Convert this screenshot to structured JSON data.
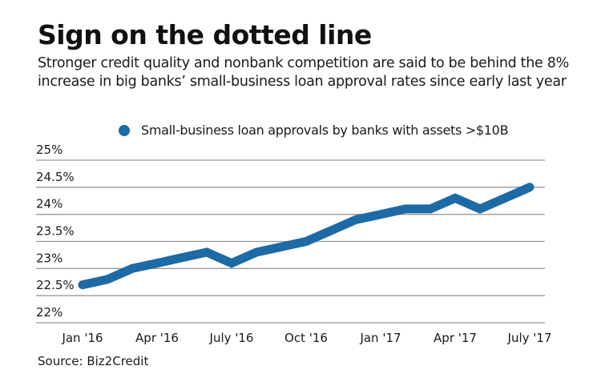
{
  "header": {
    "title": "Sign on the dotted line",
    "subtitle": "Stronger credit quality and nonbank competition are said to be behind the 8% increase in big banks’ small-business loan approval rates since early last year"
  },
  "legend": {
    "label": "Small-business loan approvals by banks with assets >$10B",
    "color": "#1d6aa5"
  },
  "source": "Source: Biz2Credit",
  "chart_data": {
    "type": "line",
    "title": "Sign on the dotted line",
    "subtitle": "Stronger credit quality and nonbank competition are said to be behind the 8% increase in big banks’ small-business loan approval rates since early last year",
    "xlabel": "",
    "ylabel": "",
    "ylim": [
      22,
      25
    ],
    "yticks": [
      "22%",
      "22.5%",
      "23%",
      "23.5%",
      "24%",
      "24.5%",
      "25%"
    ],
    "ytick_values": [
      22,
      22.5,
      23,
      23.5,
      24,
      24.5,
      25
    ],
    "xtick_labels": [
      "Jan '16",
      "Apr '16",
      "July '16",
      "Oct '16",
      "Jan '17",
      "Apr '17",
      "July '17"
    ],
    "grid": true,
    "legend_position": "top",
    "x": [
      "Jan 2016",
      "Feb 2016",
      "Mar 2016",
      "Apr 2016",
      "May 2016",
      "Jun 2016",
      "Jul 2016",
      "Aug 2016",
      "Sep 2016",
      "Oct 2016",
      "Nov 2016",
      "Dec 2016",
      "Jan 2017",
      "Feb 2017",
      "Mar 2017",
      "Apr 2017",
      "May 2017",
      "Jun 2017",
      "Jul 2017"
    ],
    "series": [
      {
        "name": "Small-business loan approvals by banks with assets >$10B",
        "color": "#1d6aa5",
        "values": [
          22.7,
          22.8,
          23.0,
          23.1,
          23.2,
          23.3,
          23.1,
          23.3,
          23.4,
          23.5,
          23.7,
          23.9,
          24.0,
          24.1,
          24.1,
          24.3,
          24.1,
          24.3,
          24.5
        ]
      }
    ],
    "source": "Source: Biz2Credit"
  }
}
